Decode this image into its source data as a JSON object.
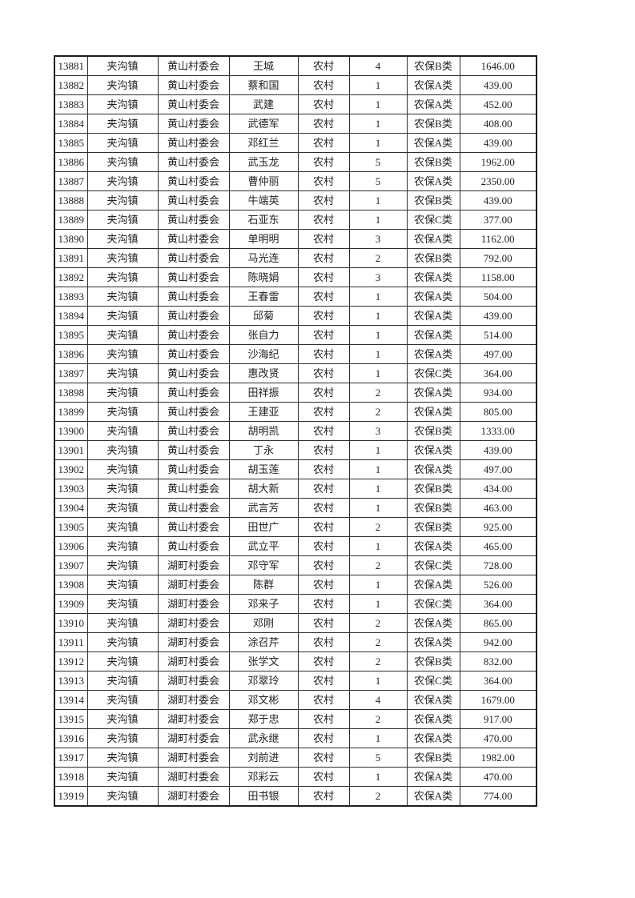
{
  "page": {
    "background_color": "#ffffff",
    "text_color": "#232323",
    "border_color": "#2e2e2e"
  },
  "table": {
    "column_keys": [
      "record-id",
      "town",
      "village-committee",
      "person-name",
      "residence-type",
      "person-count",
      "insurance-class",
      "amount"
    ],
    "rows": [
      [
        "13881",
        "夹沟镇",
        "黄山村委会",
        "王城",
        "农村",
        "4",
        "农保B类",
        "1646.00"
      ],
      [
        "13882",
        "夹沟镇",
        "黄山村委会",
        "蔡和国",
        "农村",
        "1",
        "农保A类",
        "439.00"
      ],
      [
        "13883",
        "夹沟镇",
        "黄山村委会",
        "武建",
        "农村",
        "1",
        "农保A类",
        "452.00"
      ],
      [
        "13884",
        "夹沟镇",
        "黄山村委会",
        "武德军",
        "农村",
        "1",
        "农保B类",
        "408.00"
      ],
      [
        "13885",
        "夹沟镇",
        "黄山村委会",
        "邓红兰",
        "农村",
        "1",
        "农保A类",
        "439.00"
      ],
      [
        "13886",
        "夹沟镇",
        "黄山村委会",
        "武玉龙",
        "农村",
        "5",
        "农保B类",
        "1962.00"
      ],
      [
        "13887",
        "夹沟镇",
        "黄山村委会",
        "曹仲丽",
        "农村",
        "5",
        "农保A类",
        "2350.00"
      ],
      [
        "13888",
        "夹沟镇",
        "黄山村委会",
        "牛端英",
        "农村",
        "1",
        "农保B类",
        "439.00"
      ],
      [
        "13889",
        "夹沟镇",
        "黄山村委会",
        "石亚东",
        "农村",
        "1",
        "农保C类",
        "377.00"
      ],
      [
        "13890",
        "夹沟镇",
        "黄山村委会",
        "单明明",
        "农村",
        "3",
        "农保A类",
        "1162.00"
      ],
      [
        "13891",
        "夹沟镇",
        "黄山村委会",
        "马光连",
        "农村",
        "2",
        "农保B类",
        "792.00"
      ],
      [
        "13892",
        "夹沟镇",
        "黄山村委会",
        "陈晓娟",
        "农村",
        "3",
        "农保A类",
        "1158.00"
      ],
      [
        "13893",
        "夹沟镇",
        "黄山村委会",
        "王春雷",
        "农村",
        "1",
        "农保A类",
        "504.00"
      ],
      [
        "13894",
        "夹沟镇",
        "黄山村委会",
        "邱菊",
        "农村",
        "1",
        "农保A类",
        "439.00"
      ],
      [
        "13895",
        "夹沟镇",
        "黄山村委会",
        "张自力",
        "农村",
        "1",
        "农保A类",
        "514.00"
      ],
      [
        "13896",
        "夹沟镇",
        "黄山村委会",
        "沙海纪",
        "农村",
        "1",
        "农保A类",
        "497.00"
      ],
      [
        "13897",
        "夹沟镇",
        "黄山村委会",
        "惠改贤",
        "农村",
        "1",
        "农保C类",
        "364.00"
      ],
      [
        "13898",
        "夹沟镇",
        "黄山村委会",
        "田祥振",
        "农村",
        "2",
        "农保A类",
        "934.00"
      ],
      [
        "13899",
        "夹沟镇",
        "黄山村委会",
        "王建亚",
        "农村",
        "2",
        "农保A类",
        "805.00"
      ],
      [
        "13900",
        "夹沟镇",
        "黄山村委会",
        "胡明凯",
        "农村",
        "3",
        "农保B类",
        "1333.00"
      ],
      [
        "13901",
        "夹沟镇",
        "黄山村委会",
        "丁永",
        "农村",
        "1",
        "农保A类",
        "439.00"
      ],
      [
        "13902",
        "夹沟镇",
        "黄山村委会",
        "胡玉莲",
        "农村",
        "1",
        "农保A类",
        "497.00"
      ],
      [
        "13903",
        "夹沟镇",
        "黄山村委会",
        "胡大新",
        "农村",
        "1",
        "农保B类",
        "434.00"
      ],
      [
        "13904",
        "夹沟镇",
        "黄山村委会",
        "武言芳",
        "农村",
        "1",
        "农保B类",
        "463.00"
      ],
      [
        "13905",
        "夹沟镇",
        "黄山村委会",
        "田世广",
        "农村",
        "2",
        "农保B类",
        "925.00"
      ],
      [
        "13906",
        "夹沟镇",
        "黄山村委会",
        "武立平",
        "农村",
        "1",
        "农保A类",
        "465.00"
      ],
      [
        "13907",
        "夹沟镇",
        "湖町村委会",
        "邓守军",
        "农村",
        "2",
        "农保C类",
        "728.00"
      ],
      [
        "13908",
        "夹沟镇",
        "湖町村委会",
        "陈群",
        "农村",
        "1",
        "农保A类",
        "526.00"
      ],
      [
        "13909",
        "夹沟镇",
        "湖町村委会",
        "邓来子",
        "农村",
        "1",
        "农保C类",
        "364.00"
      ],
      [
        "13910",
        "夹沟镇",
        "湖町村委会",
        "邓刚",
        "农村",
        "2",
        "农保A类",
        "865.00"
      ],
      [
        "13911",
        "夹沟镇",
        "湖町村委会",
        "涂召芹",
        "农村",
        "2",
        "农保A类",
        "942.00"
      ],
      [
        "13912",
        "夹沟镇",
        "湖町村委会",
        "张学文",
        "农村",
        "2",
        "农保B类",
        "832.00"
      ],
      [
        "13913",
        "夹沟镇",
        "湖町村委会",
        "邓翠玲",
        "农村",
        "1",
        "农保C类",
        "364.00"
      ],
      [
        "13914",
        "夹沟镇",
        "湖町村委会",
        "邓文彬",
        "农村",
        "4",
        "农保A类",
        "1679.00"
      ],
      [
        "13915",
        "夹沟镇",
        "湖町村委会",
        "郑于忠",
        "农村",
        "2",
        "农保A类",
        "917.00"
      ],
      [
        "13916",
        "夹沟镇",
        "湖町村委会",
        "武永继",
        "农村",
        "1",
        "农保A类",
        "470.00"
      ],
      [
        "13917",
        "夹沟镇",
        "湖町村委会",
        "刘前进",
        "农村",
        "5",
        "农保B类",
        "1982.00"
      ],
      [
        "13918",
        "夹沟镇",
        "湖町村委会",
        "邓彩云",
        "农村",
        "1",
        "农保A类",
        "470.00"
      ],
      [
        "13919",
        "夹沟镇",
        "湖町村委会",
        "田书银",
        "农村",
        "2",
        "农保A类",
        "774.00"
      ]
    ]
  }
}
